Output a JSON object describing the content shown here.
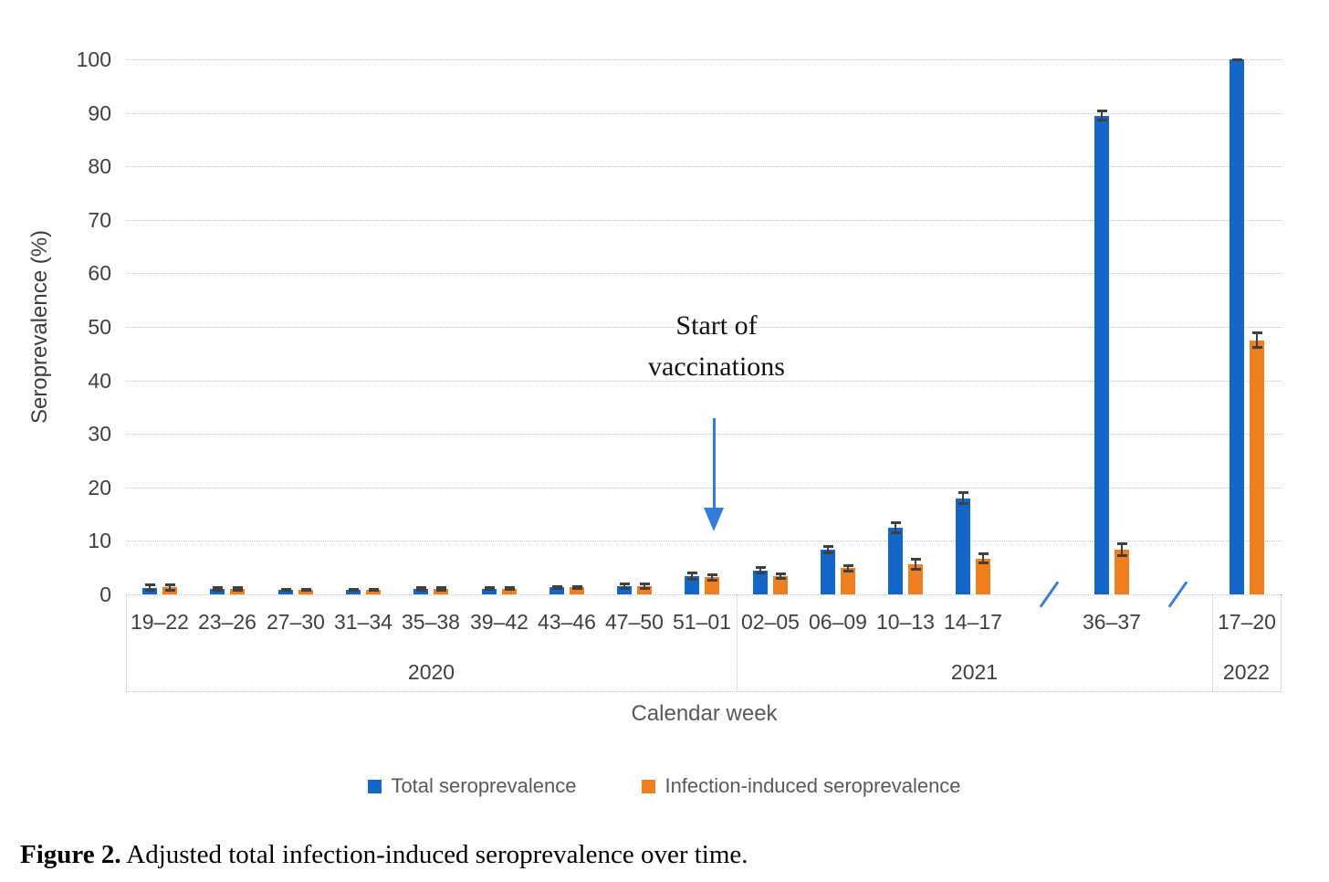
{
  "figure": {
    "caption_label": "Figure 2.",
    "caption_text": " Adjusted total infection-induced seroprevalence over time."
  },
  "annotation": {
    "line1": "Start of",
    "line2": "vaccinations"
  },
  "colors": {
    "total_series": "#1467c8",
    "infection_series": "#f0801f",
    "arrow": "#2f7cd9",
    "axis_break": "#3a7edb",
    "error_bar": "#404040",
    "gridline": "#c6c6c6",
    "axis_text": "#404040"
  },
  "chart_data": {
    "type": "bar",
    "title": "",
    "ylabel": "Seroprevalence (%)",
    "xlabel": "Calendar week",
    "ylim": [
      0,
      100
    ],
    "ytick_step": 10,
    "grid": "horizontal-dotted",
    "legend_position": "bottom",
    "categories": [
      "19–22",
      "23–26",
      "27–30",
      "31–34",
      "35–38",
      "39–42",
      "43–46",
      "47–50",
      "51–01",
      "02–05",
      "06–09",
      "10–13",
      "14–17",
      "36–37",
      "17–20"
    ],
    "year_groups": [
      {
        "label": "2020",
        "span": 9
      },
      {
        "label": "2021",
        "span": 5
      },
      {
        "label": "2022",
        "span": 1
      }
    ],
    "axis_breaks": [
      "between 14–17 and 36–37",
      "between 36–37 and 17–20"
    ],
    "series": [
      {
        "name": "Total seroprevalence",
        "color": "#1467c8",
        "values": [
          1.2,
          1.0,
          0.8,
          0.8,
          1.0,
          1.1,
          1.3,
          1.6,
          3.4,
          4.5,
          8.4,
          12.4,
          18.0,
          89.5,
          100.0
        ],
        "errors": [
          0.6,
          0.3,
          0.2,
          0.2,
          0.3,
          0.3,
          0.3,
          0.5,
          0.7,
          0.6,
          0.7,
          1.0,
          1.1,
          1.0,
          0.15
        ]
      },
      {
        "name": "Infection-induced seroprevalence",
        "color": "#f0801f",
        "values": [
          1.3,
          1.0,
          0.8,
          0.8,
          1.0,
          1.1,
          1.3,
          1.6,
          3.2,
          3.4,
          4.9,
          5.6,
          6.7,
          8.4,
          47.5
        ],
        "errors": [
          0.6,
          0.3,
          0.2,
          0.2,
          0.3,
          0.3,
          0.3,
          0.5,
          0.6,
          0.5,
          0.6,
          1.0,
          0.9,
          1.2,
          1.5
        ]
      }
    ]
  }
}
